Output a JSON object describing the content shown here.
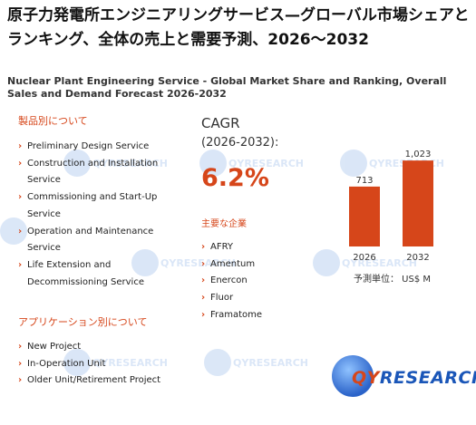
{
  "title_ja": "原子力発電所エンジニアリングサービス—グローバル市場シェアとランキング、全体の売上と需要予測、2026～2032",
  "title_en": "Nuclear Plant Engineering Service - Global Market Share and Ranking, Overall Sales and Demand Forecast 2026-2032",
  "by_type": {
    "heading": "製品別について",
    "items": [
      "Preliminary Design Service",
      "Construction and Installation Service",
      "Commissioning and Start-Up Service",
      "Operation and Maintenance Service",
      "Life Extension and Decommissioning Service"
    ]
  },
  "by_application": {
    "heading": "アプリケーション別について",
    "items": [
      "New Project",
      "In-Operation Unit",
      "Older Unit/Retirement Project"
    ]
  },
  "cagr": {
    "label": "CAGR",
    "period": "(2026-2032):",
    "value": "6.2%"
  },
  "companies": {
    "heading": "主要な企業",
    "items": [
      "AFRY",
      "Amentum",
      "Enercon",
      "Fluor",
      "Framatome"
    ]
  },
  "chart_data": {
    "type": "bar",
    "categories": [
      "2026",
      "2032"
    ],
    "values": [
      713,
      1023
    ],
    "data_labels": [
      "713",
      "1,023"
    ],
    "unit_label": "予測単位： US$ M",
    "bar_color": "#d6461a",
    "ylim": [
      0,
      1100
    ]
  },
  "watermark_text": "QYRESEARCH",
  "logo": {
    "brand_prefix": "QY",
    "brand_suffix": "RESEARCH"
  }
}
